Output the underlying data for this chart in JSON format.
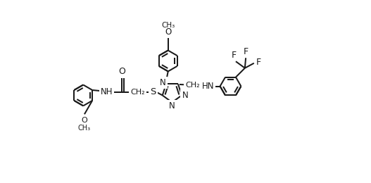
{
  "bg": "#ffffff",
  "lc": "#1a1a1a",
  "lw": 1.45,
  "figsize": [
    5.27,
    2.6
  ],
  "dpi": 100,
  "xlim": [
    -2.6,
    2.9
  ],
  "ylim": [
    -1.35,
    1.55
  ]
}
